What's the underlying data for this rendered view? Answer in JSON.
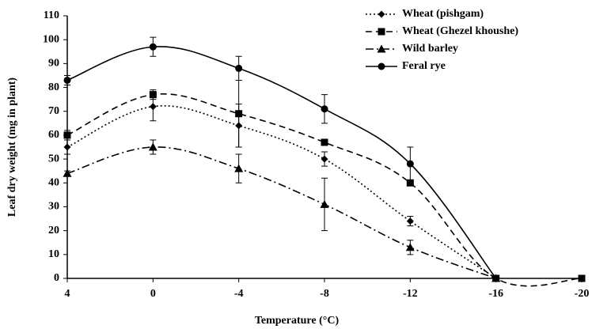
{
  "chart_data": {
    "type": "line",
    "x_label": "Temperature (°C)",
    "y_label": "Leaf dry weight (mg in plant)",
    "categories": [
      "4",
      "0",
      "-4",
      "-8",
      "-12",
      "-16",
      "-20"
    ],
    "ylim": [
      0,
      110
    ],
    "yticks": [
      0,
      10,
      20,
      30,
      40,
      50,
      60,
      70,
      80,
      90,
      100,
      110
    ],
    "legend": "top-right",
    "series": [
      {
        "name": "Wheat (pishgam)",
        "color": "#000000",
        "dash": "dotted",
        "marker": "diamond",
        "values": [
          55,
          72,
          64,
          50,
          24,
          0,
          null
        ],
        "errors": [
          3,
          6,
          9,
          3,
          2,
          0,
          null
        ]
      },
      {
        "name": "Wheat (Ghezel khoushe)",
        "color": "#000000",
        "dash": "dashed",
        "marker": "square",
        "values": [
          60,
          77,
          69,
          57,
          40,
          0,
          0
        ],
        "errors": [
          2,
          2,
          14,
          1,
          1,
          0,
          0
        ]
      },
      {
        "name": "Wild barley",
        "color": "#000000",
        "dash": "dashdot",
        "marker": "triangle",
        "values": [
          44,
          55,
          46,
          31,
          13,
          0,
          null
        ],
        "errors": [
          1,
          3,
          6,
          11,
          3,
          0,
          null
        ]
      },
      {
        "name": "Feral rye",
        "color": "#000000",
        "dash": "solid",
        "marker": "circle",
        "values": [
          83,
          97,
          88,
          71,
          48,
          0,
          null
        ],
        "errors": [
          2,
          4,
          5,
          6,
          7,
          0,
          null
        ]
      }
    ]
  }
}
